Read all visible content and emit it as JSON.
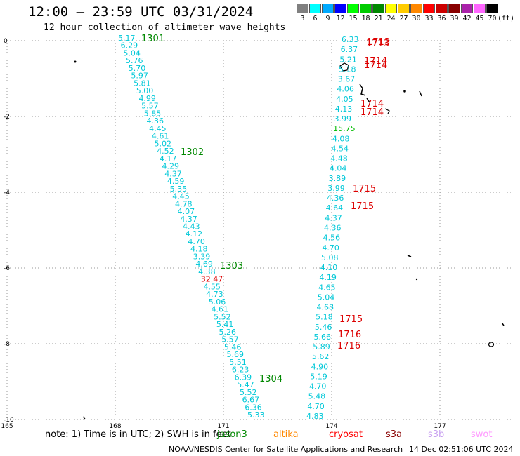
{
  "header": {
    "title": "12:00 – 23:59 UTC 03/31/2024",
    "subtitle": "12 hour collection of altimeter wave heights"
  },
  "legend": {
    "unit": "(ft)",
    "bins": [
      {
        "label": "3",
        "color": "#808080"
      },
      {
        "label": "6",
        "color": "#00ffff"
      },
      {
        "label": "9",
        "color": "#00aaff"
      },
      {
        "label": "12",
        "color": "#0000ff"
      },
      {
        "label": "15",
        "color": "#00ff00"
      },
      {
        "label": "18",
        "color": "#00cc00"
      },
      {
        "label": "21",
        "color": "#008800"
      },
      {
        "label": "24",
        "color": "#ffff00"
      },
      {
        "label": "27",
        "color": "#ffcc00"
      },
      {
        "label": "30",
        "color": "#ff8800"
      },
      {
        "label": "33",
        "color": "#ff0000"
      },
      {
        "label": "36",
        "color": "#cc0000"
      },
      {
        "label": "39",
        "color": "#880000"
      },
      {
        "label": "42",
        "color": "#aa22aa"
      },
      {
        "label": "45",
        "color": "#ff66ff"
      },
      {
        "label": "70",
        "color": "#000000"
      }
    ]
  },
  "map": {
    "lat_ticks": [
      "0",
      "-2",
      "-4",
      "-6",
      "-8",
      "-10"
    ],
    "lon_ticks": [
      "165",
      "168",
      "171",
      "174",
      "177"
    ],
    "tracks": [
      {
        "values": [
          "5.17",
          "6.29",
          "5.04",
          "5.76",
          "5.70",
          "5.97",
          "5.81",
          "5.00",
          "4.99",
          "5.57",
          "5.85",
          "4.36",
          "4.45",
          "4.61",
          "5.02",
          "4.52",
          "4.17",
          "4.29",
          "4.37",
          "4.59",
          "5.35",
          "4.45",
          "4.78",
          "4.07",
          "4.37",
          "4.43",
          "4.12",
          "4.70",
          "4.18",
          "3.39",
          "4.69",
          "4.38",
          "32.47",
          "4.55",
          "4.73",
          "5.06",
          "4.61",
          "5.52",
          "5.41",
          "5.26",
          "5.57",
          "5.46",
          "5.69",
          "5.51",
          "6.23",
          "6.39",
          "5.47",
          "5.52",
          "6.67",
          "6.36",
          "5.33"
        ]
      },
      {
        "values": [
          "6.33",
          "6.37",
          "5.21",
          "5.18",
          "3.67",
          "4.06",
          "4.05",
          "4.13",
          "3.99",
          "15.75",
          "4.08",
          "4.54",
          "4.48",
          "4.04",
          "3.89",
          "3.99",
          "4.36",
          "4.64",
          "4.37",
          "4.36",
          "4.56",
          "4.70",
          "5.08",
          "4.10",
          "4.19",
          "4.65",
          "5.04",
          "4.68",
          "5.18",
          "5.46",
          "5.66",
          "5.89",
          "5.62",
          "4.90",
          "5.19",
          "4.70",
          "5.48",
          "4.70",
          "4.83"
        ]
      }
    ],
    "pass_ids": [
      "1301",
      "1302",
      "1303",
      "1304",
      "1713",
      "1713",
      "1714",
      "1714",
      "1714",
      "1714",
      "1715",
      "1715",
      "1715",
      "1716",
      "1716"
    ]
  },
  "footer": {
    "note": "note:  1) Time is in UTC;  2) SWH is in feet",
    "satellites": [
      {
        "name": "jason3",
        "color": "#008800"
      },
      {
        "name": "altika",
        "color": "#ff8800"
      },
      {
        "name": "cryosat",
        "color": "#ff0000"
      },
      {
        "name": "s3a",
        "color": "#880000"
      },
      {
        "name": "s3b",
        "color": "#c8a0f0"
      },
      {
        "name": "swot",
        "color": "#ff99ff"
      }
    ],
    "credit": "NOAA/NESDIS Center for Satellite Applications and Research",
    "generated": "14 Dec 02:51:06 UTC 2024"
  }
}
